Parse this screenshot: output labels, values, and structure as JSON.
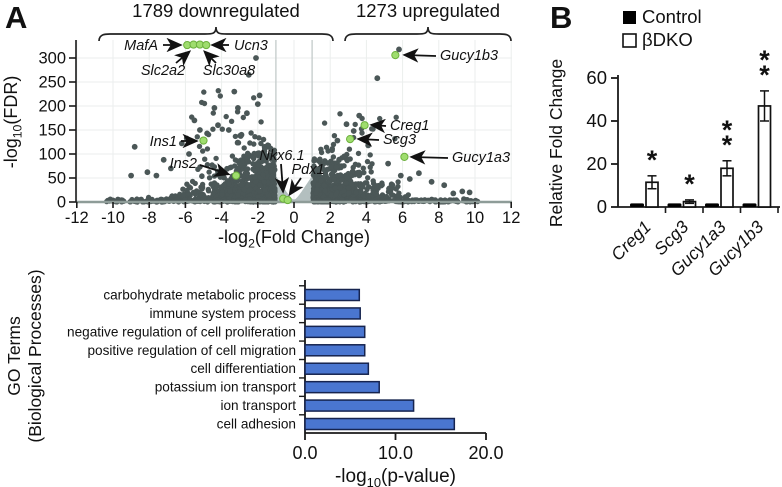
{
  "figure": {
    "panel_a_label": "A",
    "panel_b_label": "B"
  },
  "colors": {
    "scatter_dot": "#4b5757",
    "highlight_green": "#9fdd6e",
    "highlight_green_border": "#6cb03c",
    "go_bar_fill": "#4a76d0",
    "go_bar_border": "#16244f",
    "control_fill": "#000000",
    "bdko_fill": "#ffffff",
    "axis": "#1a1a1a",
    "baseline_gray": "#8e9c98",
    "ns_hump": "#b3bfbf",
    "grid": "#ebeeed",
    "threshold_line": "#c3cbca"
  },
  "chart_data": [
    {
      "id": "volcano",
      "type": "scatter",
      "annotation_down": "1789 downregulated",
      "annotation_up": "1273 upregulated",
      "xlabel": "-log2(Fold Change)",
      "ylabel": "-log10(FDR)",
      "xticks": [
        -12,
        -10,
        -8,
        -6,
        -4,
        -2,
        0,
        2,
        4,
        6,
        8,
        10,
        12
      ],
      "yticks": [
        0,
        50,
        100,
        150,
        200,
        250,
        300
      ],
      "xlim": [
        -13.2,
        13.2
      ],
      "ylim": [
        0,
        340
      ],
      "fold_change_thresholds": [
        -1,
        1
      ],
      "grid": true,
      "highlighted_genes": [
        {
          "name": "MafA",
          "x": -5.9,
          "y": 327
        },
        {
          "name": "Slc2a2",
          "x": -5.55,
          "y": 328
        },
        {
          "name": "Slc30a8",
          "x": -5.2,
          "y": 328
        },
        {
          "name": "Ucn3",
          "x": -4.85,
          "y": 327
        },
        {
          "name": "Ins1",
          "x": -5.0,
          "y": 128
        },
        {
          "name": "Ins2",
          "x": -3.2,
          "y": 55
        },
        {
          "name": "Nkx6.1",
          "x": -0.6,
          "y": 7
        },
        {
          "name": "Pdx1",
          "x": -0.35,
          "y": 4
        },
        {
          "name": "Creg1",
          "x": 3.9,
          "y": 160
        },
        {
          "name": "Scg3",
          "x": 3.1,
          "y": 131
        },
        {
          "name": "Gucy1b3",
          "x": 5.6,
          "y": 306
        },
        {
          "name": "Gucy1a3",
          "x": 6.1,
          "y": 94
        }
      ],
      "notable_points_down": [
        [
          -2.1,
          300
        ],
        [
          -2.5,
          265
        ],
        [
          -3.3,
          230
        ],
        [
          -1.9,
          222
        ],
        [
          -2.0,
          204
        ],
        [
          -4.4,
          196
        ],
        [
          -3.1,
          196
        ],
        [
          -2.6,
          185
        ],
        [
          -5.5,
          170
        ],
        [
          -4.2,
          160
        ],
        [
          -3.6,
          150
        ],
        [
          -5.2,
          150
        ],
        [
          -4.8,
          143
        ],
        [
          -2.9,
          140
        ],
        [
          -6.2,
          122
        ],
        [
          -8.8,
          115
        ],
        [
          -5.8,
          100
        ],
        [
          -7.2,
          88
        ],
        [
          -6.8,
          70
        ],
        [
          -8.1,
          62
        ],
        [
          -9.0,
          55
        ],
        [
          -7.6,
          55
        ]
      ],
      "notable_points_up": [
        [
          5.8,
          318
        ],
        [
          4.6,
          258
        ],
        [
          3.6,
          180
        ],
        [
          2.9,
          162
        ],
        [
          3.3,
          148
        ],
        [
          2.4,
          128
        ],
        [
          4.1,
          118
        ],
        [
          2.1,
          108
        ],
        [
          5.2,
          80
        ],
        [
          6.9,
          60
        ],
        [
          5.9,
          55
        ],
        [
          6.4,
          48
        ],
        [
          7.6,
          42
        ],
        [
          8.3,
          35
        ],
        [
          9.3,
          22
        ],
        [
          9.7,
          20
        ],
        [
          8.8,
          18
        ]
      ]
    },
    {
      "id": "go_terms",
      "type": "bar",
      "orientation": "horizontal",
      "ylabel_lines": [
        "GO Terms",
        "(Biological Processes)"
      ],
      "xlabel": "-log10(p-value)",
      "categories": [
        "carbohydrate metabolic process",
        "immune system process",
        "negative regulation of cell proliferation",
        "positive regulation of cell migration",
        "cell differentiation",
        "potassium ion transport",
        "ion transport",
        "cell adhesion"
      ],
      "values": [
        6.0,
        6.1,
        6.6,
        6.6,
        7.0,
        8.2,
        12.0,
        16.5
      ],
      "xticks": [
        0,
        10,
        20
      ],
      "xtick_labels": [
        "0.0",
        "10.0",
        "20.0"
      ],
      "xlim": [
        0,
        20
      ],
      "grid": false
    },
    {
      "id": "qpcr",
      "type": "bar",
      "grouped": true,
      "ylabel": "Relative Fold Change",
      "categories": [
        "Creg1",
        "Scg3",
        "Gucy1a3",
        "Gucy1b3"
      ],
      "series": [
        {
          "name": "Control",
          "values": [
            1,
            1,
            1,
            1
          ],
          "errors": [
            0,
            0,
            0,
            0
          ],
          "fill": "black"
        },
        {
          "name": "βDKO",
          "values": [
            11.5,
            2.5,
            18,
            47
          ],
          "errors": [
            3,
            0.8,
            3.5,
            7
          ],
          "fill": "white"
        }
      ],
      "significance": [
        "*",
        "*",
        "**",
        "**"
      ],
      "yticks": [
        0,
        20,
        40,
        60
      ],
      "ylim": [
        0,
        60
      ],
      "legend": [
        "Control",
        "βDKO"
      ],
      "legend_position": "top-right"
    }
  ]
}
